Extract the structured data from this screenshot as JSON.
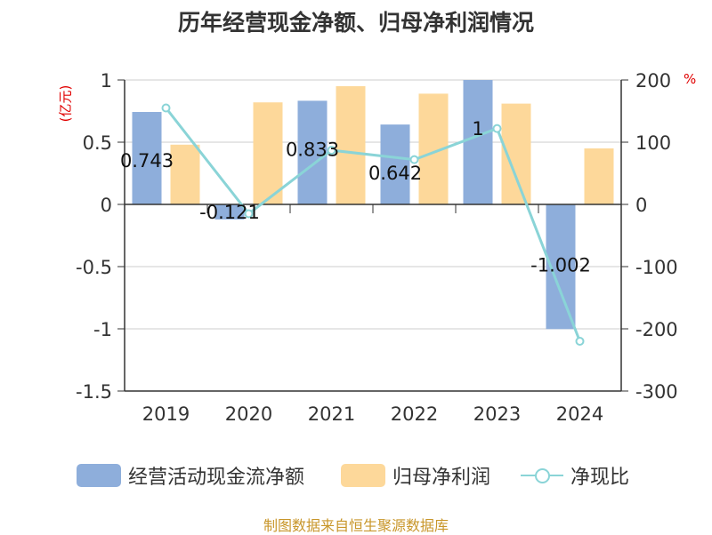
{
  "chart_data": {
    "type": "bar",
    "title": "历年经营现金净额、归母净利润情况",
    "categories": [
      "2019",
      "2020",
      "2021",
      "2022",
      "2023",
      "2024"
    ],
    "y_left": {
      "unit_label": "(亿元)",
      "range": [
        -1.5,
        1
      ],
      "ticks": [
        "1",
        "0.5",
        "0",
        "-0.5",
        "-1",
        "-1.5"
      ],
      "tick_values": [
        1,
        0.5,
        0,
        -0.5,
        -1,
        -1.5
      ]
    },
    "y_right": {
      "unit_label": "%",
      "range": [
        -300,
        200
      ],
      "ticks": [
        "200",
        "100",
        "0",
        "-100",
        "-200",
        "-300"
      ],
      "tick_values": [
        200,
        100,
        0,
        -100,
        -200,
        -300
      ]
    },
    "series": [
      {
        "name": "经营活动现金流净额",
        "type": "bar",
        "axis": "left",
        "color": "#8eaedb",
        "values": [
          0.743,
          -0.121,
          0.833,
          0.642,
          1,
          -1.002
        ],
        "labels": [
          "0.743",
          "-0.121",
          "0.833",
          "0.642",
          "1",
          "-1.002"
        ]
      },
      {
        "name": "归母净利润",
        "type": "bar",
        "axis": "left",
        "color": "#fdd89a",
        "values": [
          0.48,
          0.82,
          0.95,
          0.89,
          0.81,
          0.45
        ]
      },
      {
        "name": "净现比",
        "type": "line",
        "axis": "right",
        "color": "#8ad4d7",
        "values": [
          155,
          -15,
          87,
          72,
          122,
          -220
        ]
      }
    ],
    "grid": true,
    "legend_position": "bottom"
  },
  "source": "制图数据来自恒生聚源数据库"
}
